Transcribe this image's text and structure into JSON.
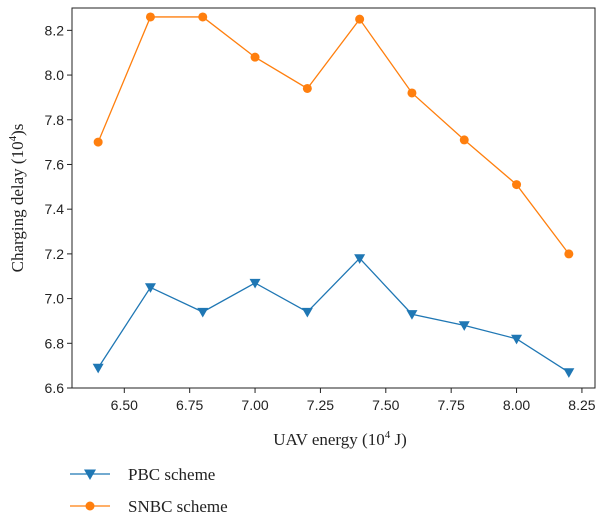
{
  "chart_data": {
    "type": "line",
    "xlabel": "UAV energy (10",
    "xlabel_sup": "4",
    "xlabel_suffix": " J)",
    "ylabel": "Charging delay (10",
    "ylabel_sup": "4",
    "ylabel_suffix": ")s",
    "xlim": [
      6.3,
      8.3
    ],
    "ylim": [
      6.6,
      8.3
    ],
    "xticks": [
      "6.50",
      "6.75",
      "7.00",
      "7.25",
      "7.50",
      "7.75",
      "8.00",
      "8.25"
    ],
    "xtick_values": [
      6.5,
      6.75,
      7.0,
      7.25,
      7.5,
      7.75,
      8.0,
      8.25
    ],
    "yticks": [
      "6.6",
      "6.8",
      "7.0",
      "7.2",
      "7.4",
      "7.6",
      "7.8",
      "8.0",
      "8.2"
    ],
    "ytick_values": [
      6.6,
      6.8,
      7.0,
      7.2,
      7.4,
      7.6,
      7.8,
      8.0,
      8.2
    ],
    "x": [
      6.4,
      6.6,
      6.8,
      7.0,
      7.2,
      7.4,
      7.6,
      7.8,
      8.0,
      8.2
    ],
    "series": [
      {
        "name": "PBC scheme",
        "color": "#1f77b4",
        "marker": "triangle-down",
        "values": [
          6.69,
          7.05,
          6.94,
          7.07,
          6.94,
          7.18,
          6.93,
          6.88,
          6.82,
          6.67
        ]
      },
      {
        "name": "SNBC scheme",
        "color": "#ff7f0e",
        "marker": "circle",
        "values": [
          7.7,
          8.26,
          8.26,
          8.08,
          7.94,
          8.25,
          7.92,
          7.71,
          7.51,
          7.2
        ]
      }
    ],
    "grid": false,
    "legend": "bottom-left, below plot"
  }
}
